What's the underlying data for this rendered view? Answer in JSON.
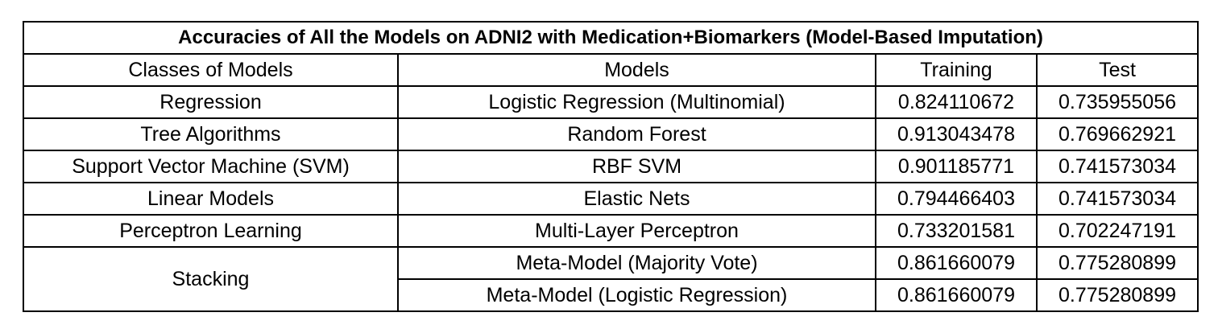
{
  "table": {
    "title": "Accuracies of All the Models on ADNI2 with Medication+Biomarkers  (Model-Based Imputation)",
    "headers": [
      "Classes of Models",
      "Models",
      "Training",
      "Test"
    ],
    "rows": [
      {
        "class": "Regression",
        "model": "Logistic Regression (Multinomial)",
        "training": "0.824110672",
        "test": "0.735955056"
      },
      {
        "class": "Tree Algorithms",
        "model": "Random Forest",
        "training": "0.913043478",
        "test": "0.769662921"
      },
      {
        "class": "Support Vector Machine (SVM)",
        "model": "RBF SVM",
        "training": "0.901185771",
        "test": "0.741573034"
      },
      {
        "class": "Linear Models",
        "model": "Elastic Nets",
        "training": "0.794466403",
        "test": "0.741573034"
      },
      {
        "class": "Perceptron Learning",
        "model": "Multi-Layer Perceptron",
        "training": "0.733201581",
        "test": "0.702247191"
      },
      {
        "class": "Stacking",
        "model": "Meta-Model (Majority Vote)",
        "training": "0.861660079",
        "test": "0.775280899"
      },
      {
        "class": "",
        "model": "Meta-Model (Logistic Regression)",
        "training": "0.861660079",
        "test": "0.775280899"
      }
    ]
  }
}
